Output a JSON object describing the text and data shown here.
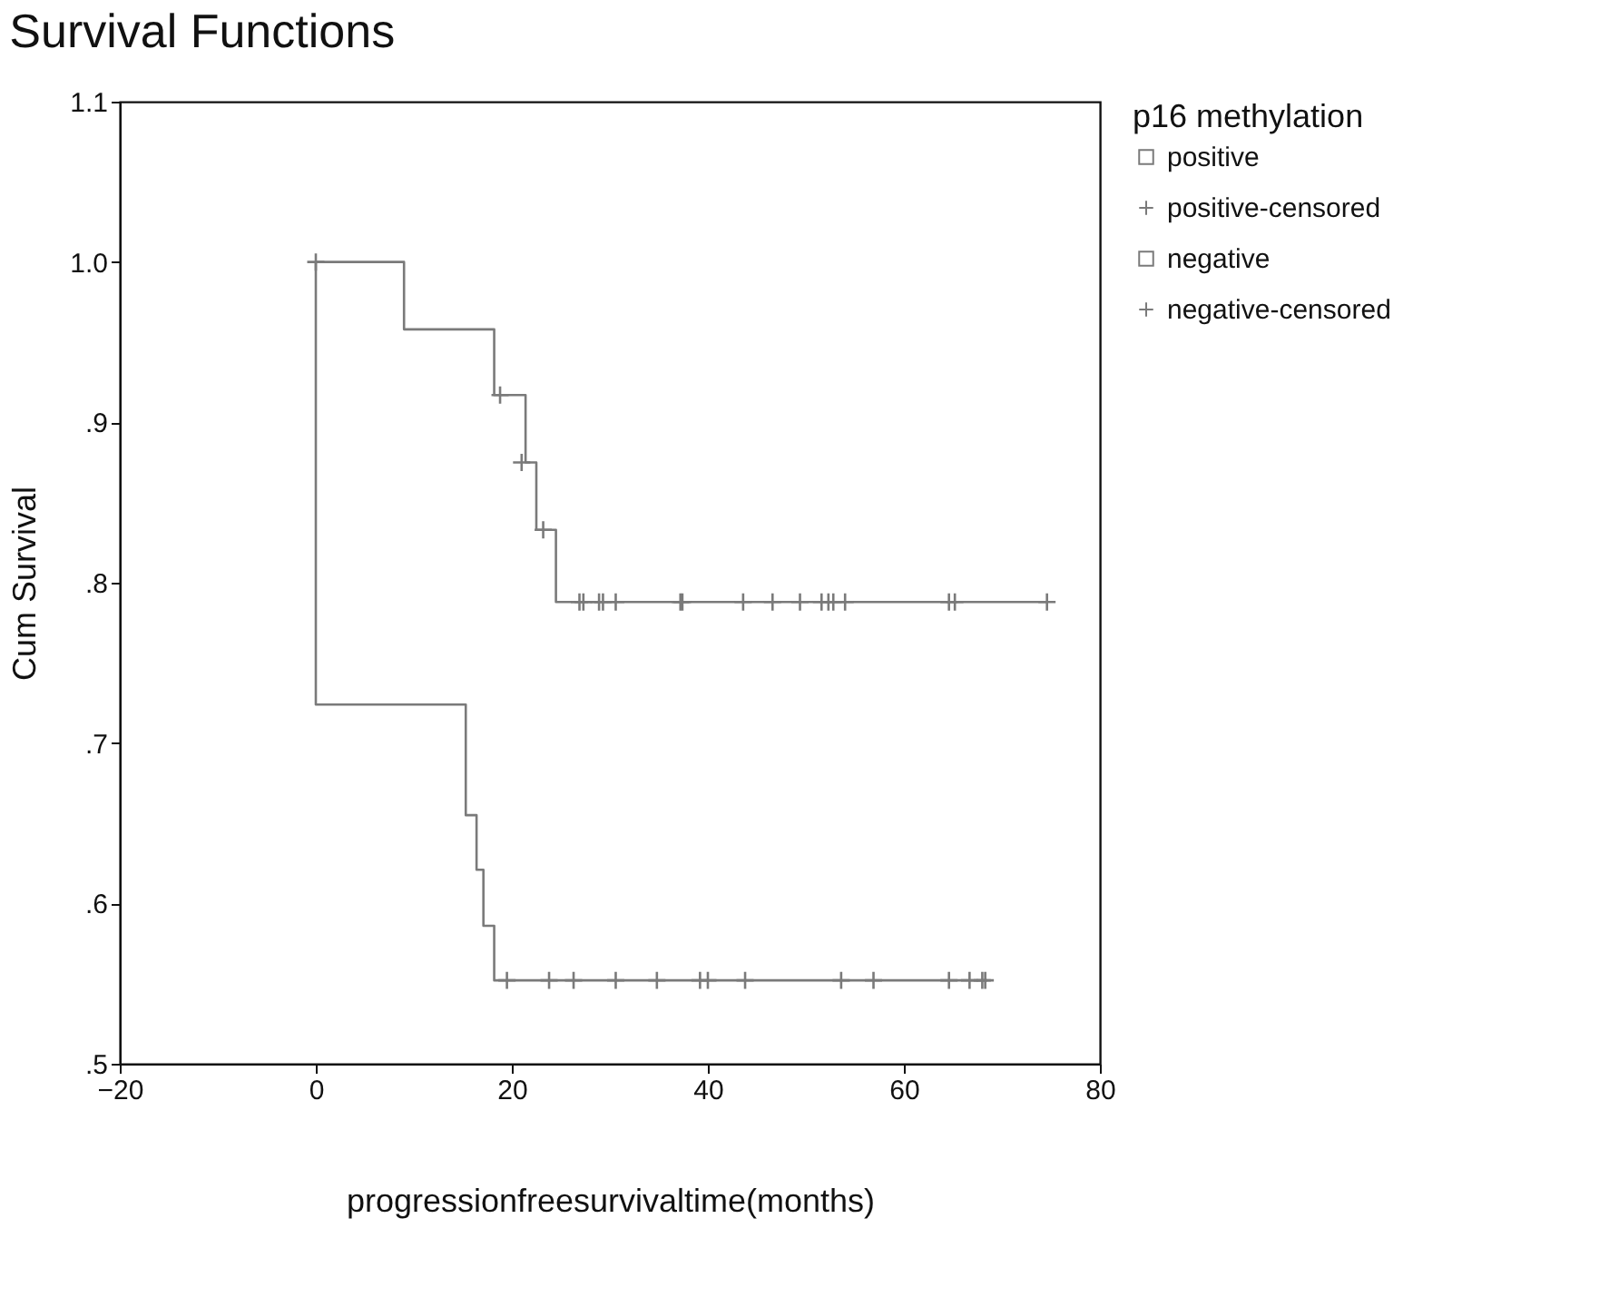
{
  "chart_data": {
    "type": "step",
    "title": "Survival Functions",
    "xlabel": "progressionfreesurvivaltime(months)",
    "ylabel": "Cum Survival",
    "legend_title": "p16 methylation",
    "xlim": [
      -20,
      80
    ],
    "xticks": [
      -20,
      0,
      20,
      40,
      60,
      80
    ],
    "ylim": [
      0.5,
      1.1
    ],
    "yticks": [
      {
        "value": 0.5,
        "label": ".5"
      },
      {
        "value": 0.6,
        "label": ".6"
      },
      {
        "value": 0.7,
        "label": ".7"
      },
      {
        "value": 0.8,
        "label": ".8"
      },
      {
        "value": 0.9,
        "label": ".9"
      },
      {
        "value": 1.0,
        "label": "1.0"
      },
      {
        "value": 1.1,
        "label": "1.1"
      }
    ],
    "grid": false,
    "legend": "right",
    "series": [
      {
        "name": "positive",
        "color": "#7a7a7a",
        "x": [
          0,
          9,
          18.2,
          21.4,
          22.5,
          24.5,
          74.6
        ],
        "values": [
          1.0,
          0.958,
          0.917,
          0.875,
          0.833,
          0.788,
          0.788
        ]
      },
      {
        "name": "positive-censored",
        "type": "scatter",
        "marker": "cross",
        "color": "#7a7a7a",
        "x": [
          0,
          18.8,
          21,
          23.2,
          26.9,
          27.3,
          28.9,
          29.3,
          30.6,
          37.2,
          37.4,
          43.6,
          46.6,
          49.4,
          51.6,
          52.3,
          52.8,
          54.0,
          64.6,
          65.2,
          74.6
        ],
        "values": [
          1.0,
          0.917,
          0.875,
          0.833,
          0.788,
          0.788,
          0.788,
          0.788,
          0.788,
          0.788,
          0.788,
          0.788,
          0.788,
          0.788,
          0.788,
          0.788,
          0.788,
          0.788,
          0.788,
          0.788,
          0.788
        ]
      },
      {
        "name": "negative",
        "color": "#7a7a7a",
        "x": [
          0,
          0,
          15.3,
          16.4,
          17.1,
          18.2,
          68.5
        ],
        "values": [
          1.0,
          0.724,
          0.655,
          0.621,
          0.586,
          0.552,
          0.552
        ]
      },
      {
        "name": "negative-censored",
        "type": "scatter",
        "marker": "cross",
        "color": "#7a7a7a",
        "x": [
          19.5,
          23.8,
          26.3,
          30.6,
          34.8,
          39.2,
          40.0,
          43.8,
          53.6,
          56.9,
          64.6,
          66.7,
          68.0,
          68.3
        ],
        "values": [
          0.552,
          0.552,
          0.552,
          0.552,
          0.552,
          0.552,
          0.552,
          0.552,
          0.552,
          0.552,
          0.552,
          0.552,
          0.552,
          0.552
        ]
      }
    ]
  }
}
